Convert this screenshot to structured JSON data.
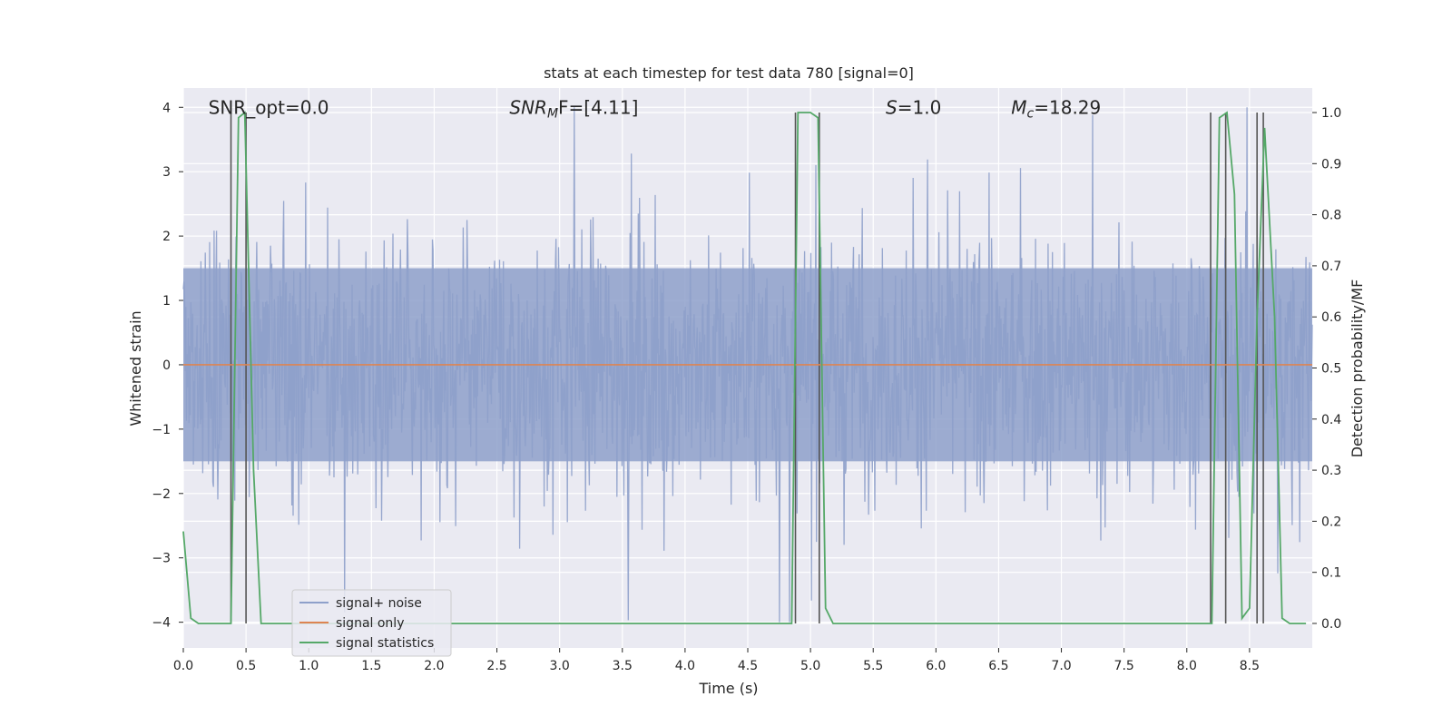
{
  "chart_data": {
    "type": "line",
    "title": "stats at each timestep for test data 780 [signal=0]",
    "xlabel": "Time (s)",
    "ylabel": "Whitened strain",
    "y2label": "Detection probability/MF",
    "xlim": [
      0.0,
      9.0
    ],
    "ylim": [
      -4.4,
      4.3
    ],
    "y2lim": [
      -0.048,
      1.048
    ],
    "x_ticks": [
      "0.0",
      "0.5",
      "1.0",
      "1.5",
      "2.0",
      "2.5",
      "3.0",
      "3.5",
      "4.0",
      "4.5",
      "5.0",
      "5.5",
      "6.0",
      "6.5",
      "7.0",
      "7.5",
      "8.0",
      "8.5"
    ],
    "y_ticks": [
      "4",
      "3",
      "2",
      "1",
      "0",
      "−1",
      "−2",
      "−3",
      "−4"
    ],
    "y2_ticks": [
      "1.0",
      "0.9",
      "0.8",
      "0.7",
      "0.6",
      "0.5",
      "0.4",
      "0.3",
      "0.2",
      "0.1",
      "0.0"
    ],
    "grid": true,
    "legend_position": "lower-left",
    "annotations": [
      {
        "text": "SNR_opt=0.0",
        "x": 0.2,
        "y": 4.0
      },
      {
        "text": "SNR",
        "sub": "M",
        "tail": "F=[4.11]",
        "x": 2.6,
        "y": 4.0
      },
      {
        "text": "S",
        "tail": "=1.0",
        "x": 5.6,
        "y": 4.0
      },
      {
        "text": "M",
        "sub": "c",
        "tail": "=18.29",
        "x": 6.6,
        "y": 4.0
      }
    ],
    "series": [
      {
        "name": "signal+ noise",
        "color": "#8ea0ca",
        "style": "noise",
        "amplitude_typical": 1.5,
        "amplitude_max": 4.0
      },
      {
        "name": "signal only",
        "color": "#dd8452",
        "values_constant": 0.0
      },
      {
        "name": "signal statistics",
        "color": "#55a868",
        "axis": "right",
        "x": [
          0.0,
          0.06,
          0.12,
          0.38,
          0.44,
          0.49,
          0.56,
          0.62,
          4.85,
          4.9,
          5.0,
          5.06,
          5.12,
          5.18,
          8.2,
          8.26,
          8.32,
          8.38,
          8.44,
          8.5,
          8.56,
          8.62,
          8.7,
          8.76,
          8.82,
          8.95
        ],
        "values": [
          0.18,
          0.01,
          0.0,
          0.0,
          0.99,
          1.0,
          0.3,
          0.0,
          0.0,
          1.0,
          1.0,
          0.99,
          0.03,
          0.0,
          0.0,
          0.99,
          1.0,
          0.84,
          0.01,
          0.03,
          0.6,
          0.97,
          0.6,
          0.01,
          0.0,
          0.0
        ]
      }
    ],
    "vlines_x": [
      0.38,
      0.5,
      4.88,
      5.07,
      8.19,
      8.31,
      8.56,
      8.61
    ]
  }
}
